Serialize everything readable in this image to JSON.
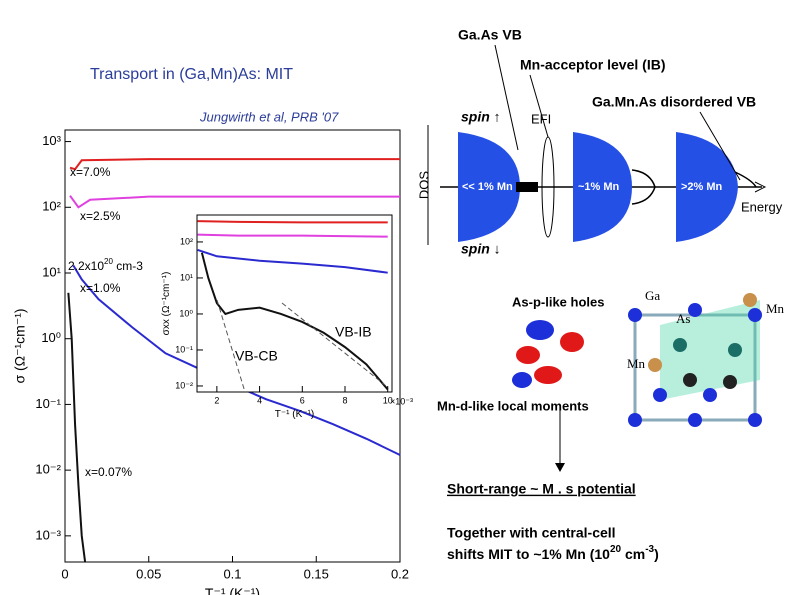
{
  "slide": {
    "title": "Transport in (Ga,Mn)As: MIT",
    "citation": "Jungwirth  et al, PRB '07",
    "gaas_vb": "Ga.As VB",
    "mn_acceptor": "Mn-acceptor level (IB)",
    "disordered_vb": "Ga.Mn.As disordered VB",
    "spin_up": "spin ↑",
    "spin_down": "spin ↓",
    "efi": "EFI",
    "dos": "DOS",
    "energy": "Energy",
    "dome_labels": [
      "<< 1% Mn",
      "~1% Mn",
      ">2% Mn"
    ],
    "holes": "As-p-like holes",
    "moments": "Mn-d-like local moments",
    "atoms": [
      "Ga",
      "As",
      "Mn",
      "Mn"
    ],
    "short_range": "Short-range ~ M . s potential",
    "together": "Together with central-cell",
    "shifts": [
      "shifts MIT to ~1% Mn (10",
      "20",
      " cm",
      "-3",
      ")"
    ],
    "density": [
      "2.2x10",
      "20",
      " cm-3"
    ],
    "vb_ib": "VB-IB",
    "vb_cb": "VB-CB"
  },
  "chart_data": [
    {
      "type": "line",
      "xlabel": "T⁻¹  (K⁻¹)",
      "ylabel": "σ  (Ω⁻¹cm⁻¹)",
      "log_y": true,
      "xlim": [
        0,
        0.2
      ],
      "xticks": [
        0,
        0.05,
        0.1,
        0.15,
        0.2
      ],
      "ylim": [
        0.0004,
        1500
      ],
      "yticks": [
        {
          "value": 1000,
          "label": "10³"
        },
        {
          "value": 100,
          "label": "10²"
        },
        {
          "value": 10,
          "label": "10¹"
        },
        {
          "value": 1,
          "label": "10⁰"
        },
        {
          "value": 0.1,
          "label": "10⁻¹"
        },
        {
          "value": 0.01,
          "label": "10⁻²"
        },
        {
          "value": 0.001,
          "label": "10⁻³"
        }
      ],
      "series": [
        {
          "name": "x=7.0%",
          "color": "#e02020",
          "x": [
            0.003,
            0.006,
            0.01,
            0.05,
            0.1,
            0.15,
            0.2
          ],
          "values": [
            400,
            380,
            520,
            540,
            540,
            540,
            540
          ]
        },
        {
          "name": "x=2.5%",
          "color": "#e040e0",
          "x": [
            0.003,
            0.008,
            0.015,
            0.05,
            0.1,
            0.15,
            0.2
          ],
          "values": [
            150,
            100,
            130,
            145,
            145,
            145,
            145
          ]
        },
        {
          "name": "x=1.0%",
          "color": "#2a2ad0",
          "x": [
            0.005,
            0.01,
            0.02,
            0.04,
            0.06,
            0.08,
            0.1,
            0.12,
            0.14,
            0.16,
            0.18,
            0.2
          ],
          "values": [
            13,
            8,
            4,
            1.5,
            0.6,
            0.35,
            0.2,
            0.12,
            0.08,
            0.05,
            0.03,
            0.017
          ]
        },
        {
          "name": "x=0.07%",
          "color": "#111111",
          "x": [
            0.002,
            0.004,
            0.006,
            0.008,
            0.01,
            0.012
          ],
          "values": [
            5,
            1,
            0.05,
            0.006,
            0.001,
            0.0004
          ]
        }
      ]
    },
    {
      "type": "line",
      "xlabel": "T⁻¹  (K⁻¹)",
      "ylabel": "σxx  (Ω⁻¹cm⁻¹)",
      "log_y": true,
      "x_note": "×10⁻³",
      "xlim": [
        1.07,
        10.2
      ],
      "xticks": [
        2,
        4,
        6,
        8,
        10
      ],
      "ylim": [
        0.0068,
        560
      ],
      "yticks": [
        {
          "value": 100,
          "label": "10²"
        },
        {
          "value": 10,
          "label": "10¹"
        },
        {
          "value": 1,
          "label": "10⁰"
        },
        {
          "value": 0.1,
          "label": "10⁻¹"
        },
        {
          "value": 0.01,
          "label": "10⁻²"
        }
      ],
      "series": [
        {
          "color": "#e02020",
          "x": [
            1.1,
            3,
            6,
            10
          ],
          "values": [
            380,
            360,
            350,
            350
          ]
        },
        {
          "color": "#e040e0",
          "x": [
            1.1,
            3,
            6,
            10
          ],
          "values": [
            160,
            150,
            150,
            140
          ]
        },
        {
          "color": "#2a2ad0",
          "x": [
            1.1,
            2,
            4,
            6,
            8,
            10
          ],
          "values": [
            60,
            40,
            30,
            25,
            20,
            14
          ]
        },
        {
          "color": "#111111",
          "x": [
            1.3,
            1.6,
            2,
            2.4,
            3,
            4,
            5,
            6,
            7,
            8,
            9,
            10
          ],
          "values": [
            50,
            10,
            2,
            1,
            1.3,
            1.5,
            1.0,
            0.6,
            0.3,
            0.12,
            0.04,
            0.008
          ]
        }
      ]
    }
  ]
}
